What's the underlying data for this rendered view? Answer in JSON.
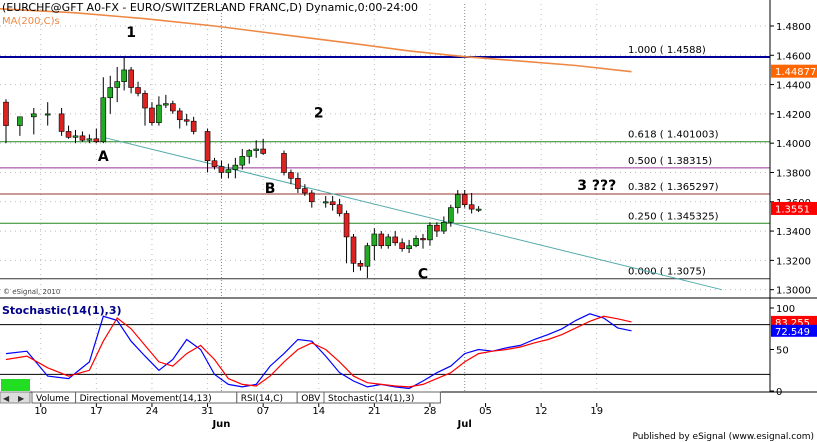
{
  "header": {
    "title": "(EURCHF@GFT A0-FX - EURO/SWITZERLAND FRANC,D) Dynamic,0:00-24:00",
    "ma_label": "MA(200,C)s",
    "watermark": "© eSignal, 2010"
  },
  "footer": {
    "published": "Published by eSignal (www.esignal.com)"
  },
  "tabs": [
    "Volume",
    "Directional Movement(14,13)",
    "RSI(14,C)",
    "OBV",
    "Stochastic(14(1),3)"
  ],
  "annotations": [
    {
      "text": "1",
      "date_index": 18,
      "price": 1.4725
    },
    {
      "text": "A",
      "date_index": 14,
      "price": 1.388
    },
    {
      "text": "2",
      "date_index": 45,
      "price": 1.4175
    },
    {
      "text": "B",
      "date_index": 38,
      "price": 1.366
    },
    {
      "text": "C",
      "date_index": 60,
      "price": 1.3075
    },
    {
      "text": "3 ???",
      "date_index": 85,
      "price": 1.368
    }
  ],
  "chart_data": [
    {
      "type": "candlestick",
      "title": "(EURCHF@GFT A0-FX - EURO/SWITZERLAND FRANC,D) Dynamic,0:00-24:00",
      "ylim": [
        1.295,
        1.495
      ],
      "y_ticks": [
        "1.4800",
        "1.4600",
        "1.4400",
        "1.4200",
        "1.4000",
        "1.3800",
        "1.3600",
        "1.3400",
        "1.3200",
        "1.3000"
      ],
      "x_ticks": [
        {
          "label": "10",
          "index": 5
        },
        {
          "label": "17",
          "index": 13
        },
        {
          "label": "24",
          "index": 21
        },
        {
          "label": "31",
          "index": 29
        },
        {
          "label": "07",
          "index": 37
        },
        {
          "label": "14",
          "index": 45
        },
        {
          "label": "21",
          "index": 53
        },
        {
          "label": "28",
          "index": 61
        },
        {
          "label": "05",
          "index": 69
        },
        {
          "label": "12",
          "index": 77
        },
        {
          "label": "19",
          "index": 85
        }
      ],
      "month_labels": [
        {
          "label": "Jun",
          "index": 31
        },
        {
          "label": "Jul",
          "index": 66
        }
      ],
      "price_labels": [
        {
          "text": "1.448776",
          "price": 1.4488,
          "bg": "#ff6600"
        },
        {
          "text": "1.3551",
          "price": 1.3551,
          "bg": "#ff0000"
        }
      ],
      "candles": [
        [
          1.428,
          1.43,
          1.4,
          1.412
        ],
        [
          1.412,
          1.418,
          1.405,
          1.418
        ],
        [
          1.418,
          1.424,
          1.406,
          1.42
        ],
        [
          1.42,
          1.428,
          1.412,
          1.42
        ],
        [
          1.42,
          1.424,
          1.405,
          1.408
        ],
        [
          1.408,
          1.412,
          1.403,
          1.404
        ],
        [
          1.404,
          1.409,
          1.4,
          1.405
        ],
        [
          1.405,
          1.408,
          1.401,
          1.402
        ],
        [
          1.402,
          1.406,
          1.4,
          1.403
        ],
        [
          1.403,
          1.41,
          1.4,
          1.401
        ],
        [
          1.401,
          1.445,
          1.4,
          1.431
        ],
        [
          1.431,
          1.446,
          1.42,
          1.438
        ],
        [
          1.438,
          1.452,
          1.428,
          1.442
        ],
        [
          1.442,
          1.4588,
          1.436,
          1.45
        ],
        [
          1.45,
          1.452,
          1.434,
          1.438
        ],
        [
          1.438,
          1.442,
          1.432,
          1.434
        ],
        [
          1.434,
          1.436,
          1.412,
          1.424
        ],
        [
          1.424,
          1.428,
          1.412,
          1.414
        ],
        [
          1.414,
          1.432,
          1.412,
          1.426
        ],
        [
          1.426,
          1.433,
          1.424,
          1.427
        ],
        [
          1.427,
          1.429,
          1.42,
          1.422
        ],
        [
          1.422,
          1.424,
          1.41,
          1.416
        ],
        [
          1.416,
          1.42,
          1.412,
          1.415
        ],
        [
          1.415,
          1.418,
          1.406,
          1.408
        ],
        [
          1.408,
          1.41,
          1.38,
          1.388
        ],
        [
          1.388,
          1.39,
          1.382,
          1.384
        ],
        [
          1.384,
          1.388,
          1.376,
          1.38
        ],
        [
          1.38,
          1.386,
          1.376,
          1.382
        ],
        [
          1.382,
          1.39,
          1.376,
          1.385
        ],
        [
          1.385,
          1.396,
          1.382,
          1.391
        ],
        [
          1.391,
          1.396,
          1.386,
          1.395
        ],
        [
          1.395,
          1.402,
          1.39,
          1.396
        ],
        [
          1.396,
          1.403,
          1.392,
          1.393
        ],
        [
          1.393,
          1.395,
          1.378,
          1.38
        ],
        [
          1.38,
          1.382,
          1.372,
          1.376
        ],
        [
          1.376,
          1.38,
          1.366,
          1.369
        ],
        [
          1.369,
          1.372,
          1.364,
          1.366
        ],
        [
          1.366,
          1.368,
          1.356,
          1.36
        ],
        [
          1.36,
          1.364,
          1.356,
          1.36
        ],
        [
          1.36,
          1.364,
          1.354,
          1.358
        ],
        [
          1.358,
          1.362,
          1.35,
          1.352
        ],
        [
          1.352,
          1.354,
          1.318,
          1.336
        ],
        [
          1.336,
          1.338,
          1.312,
          1.318
        ],
        [
          1.318,
          1.32,
          1.313,
          1.316
        ],
        [
          1.316,
          1.332,
          1.308,
          1.33
        ],
        [
          1.33,
          1.342,
          1.32,
          1.338
        ],
        [
          1.338,
          1.34,
          1.328,
          1.33
        ],
        [
          1.33,
          1.338,
          1.328,
          1.336
        ],
        [
          1.336,
          1.34,
          1.33,
          1.332
        ],
        [
          1.332,
          1.335,
          1.326,
          1.328
        ],
        [
          1.328,
          1.334,
          1.325,
          1.33
        ],
        [
          1.33,
          1.337,
          1.329,
          1.335
        ],
        [
          1.335,
          1.338,
          1.328,
          1.334
        ],
        [
          1.334,
          1.346,
          1.33,
          1.344
        ],
        [
          1.344,
          1.346,
          1.336,
          1.34
        ],
        [
          1.34,
          1.35,
          1.338,
          1.346
        ],
        [
          1.346,
          1.358,
          1.343,
          1.356
        ],
        [
          1.356,
          1.368,
          1.352,
          1.365
        ],
        [
          1.365,
          1.368,
          1.356,
          1.358
        ],
        [
          1.358,
          1.366,
          1.352,
          1.355
        ],
        [
          1.355,
          1.357,
          1.353,
          1.355
        ]
      ],
      "candle_positions": [
        0,
        2,
        4,
        6,
        8,
        9,
        10,
        11,
        12,
        13,
        14,
        15,
        16,
        17,
        18,
        19,
        20,
        21,
        22,
        23,
        24,
        25,
        26,
        27,
        29,
        30,
        31,
        32,
        33,
        34,
        35,
        36,
        37,
        40,
        41,
        42,
        43,
        44,
        46,
        47,
        48,
        49,
        50,
        51,
        52,
        53,
        54,
        55,
        56,
        57,
        58,
        59,
        60,
        61,
        62,
        63,
        64,
        65,
        66,
        67,
        68
      ],
      "ma_200": [
        [
          -2,
          1.492
        ],
        [
          10,
          1.489
        ],
        [
          20,
          1.485
        ],
        [
          30,
          1.48
        ],
        [
          40,
          1.474
        ],
        [
          50,
          1.468
        ],
        [
          58,
          1.463
        ],
        [
          66,
          1.459
        ],
        [
          74,
          1.456
        ],
        [
          82,
          1.453
        ],
        [
          90,
          1.4488
        ]
      ],
      "trendline": [
        [
          14,
          1.404
        ],
        [
          103,
          1.3
        ]
      ],
      "fibonacci": [
        {
          "label": "1.000 ( 1.4588)",
          "price": 1.4588,
          "color": "#000099",
          "width": 2
        },
        {
          "label": "0.618 ( 1.401003)",
          "price": 1.401003,
          "color": "#228822",
          "width": 1
        },
        {
          "label": "0.500 ( 1.38315)",
          "price": 1.38315,
          "color": "#993399",
          "width": 1
        },
        {
          "label": "0.382 ( 1.365297)",
          "price": 1.365297,
          "color": "#993333",
          "width": 1
        },
        {
          "label": "0.250 ( 1.345325)",
          "price": 1.345325,
          "color": "#228822",
          "width": 1
        },
        {
          "label": "0.000 ( 1.3075)",
          "price": 1.3075,
          "color": "#333333",
          "width": 1
        }
      ],
      "colors": {
        "up": "#22aa22",
        "down": "#dd2222",
        "ma": "#ee8844",
        "trend": "#55aaaa"
      }
    },
    {
      "type": "line",
      "title": "Stochastic(14(1),3)",
      "ylim": [
        0,
        100
      ],
      "y_ticks": [
        "100",
        "50",
        "0"
      ],
      "levels": [
        80,
        20
      ],
      "value_labels": [
        {
          "text": "83.255",
          "value": 83.255,
          "bg": "#ff0000"
        },
        {
          "text": "72.549",
          "value": 72.549,
          "bg": "#0000ff"
        }
      ],
      "series": [
        {
          "name": "%K",
          "color": "#0000ff",
          "points": [
            [
              0,
              45
            ],
            [
              3,
              48
            ],
            [
              6,
              18
            ],
            [
              9,
              15
            ],
            [
              12,
              35
            ],
            [
              14,
              90
            ],
            [
              16,
              85
            ],
            [
              18,
              60
            ],
            [
              20,
              42
            ],
            [
              22,
              25
            ],
            [
              24,
              38
            ],
            [
              26,
              62
            ],
            [
              28,
              50
            ],
            [
              30,
              20
            ],
            [
              32,
              8
            ],
            [
              34,
              5
            ],
            [
              36,
              8
            ],
            [
              38,
              30
            ],
            [
              40,
              45
            ],
            [
              42,
              62
            ],
            [
              44,
              60
            ],
            [
              46,
              42
            ],
            [
              48,
              22
            ],
            [
              50,
              12
            ],
            [
              52,
              5
            ],
            [
              54,
              8
            ],
            [
              56,
              5
            ],
            [
              58,
              3
            ],
            [
              60,
              12
            ],
            [
              62,
              22
            ],
            [
              64,
              30
            ],
            [
              66,
              45
            ],
            [
              68,
              50
            ],
            [
              70,
              48
            ],
            [
              72,
              52
            ],
            [
              74,
              55
            ],
            [
              76,
              62
            ],
            [
              78,
              68
            ],
            [
              80,
              75
            ],
            [
              82,
              85
            ],
            [
              84,
              93
            ],
            [
              86,
              88
            ],
            [
              88,
              76
            ],
            [
              90,
              72.5
            ]
          ]
        },
        {
          "name": "%D",
          "color": "#ff0000",
          "points": [
            [
              0,
              38
            ],
            [
              3,
              42
            ],
            [
              6,
              28
            ],
            [
              9,
              18
            ],
            [
              12,
              25
            ],
            [
              14,
              60
            ],
            [
              16,
              88
            ],
            [
              18,
              75
            ],
            [
              20,
              55
            ],
            [
              22,
              35
            ],
            [
              24,
              30
            ],
            [
              26,
              45
            ],
            [
              28,
              55
            ],
            [
              30,
              38
            ],
            [
              32,
              15
            ],
            [
              34,
              8
            ],
            [
              36,
              6
            ],
            [
              38,
              18
            ],
            [
              40,
              35
            ],
            [
              42,
              50
            ],
            [
              44,
              58
            ],
            [
              46,
              50
            ],
            [
              48,
              35
            ],
            [
              50,
              18
            ],
            [
              52,
              10
            ],
            [
              54,
              8
            ],
            [
              56,
              6
            ],
            [
              58,
              5
            ],
            [
              60,
              8
            ],
            [
              62,
              15
            ],
            [
              64,
              22
            ],
            [
              66,
              35
            ],
            [
              68,
              45
            ],
            [
              70,
              48
            ],
            [
              72,
              50
            ],
            [
              74,
              53
            ],
            [
              76,
              58
            ],
            [
              78,
              62
            ],
            [
              80,
              68
            ],
            [
              82,
              76
            ],
            [
              84,
              84
            ],
            [
              86,
              90
            ],
            [
              88,
              87
            ],
            [
              90,
              83.3
            ]
          ]
        }
      ]
    }
  ]
}
